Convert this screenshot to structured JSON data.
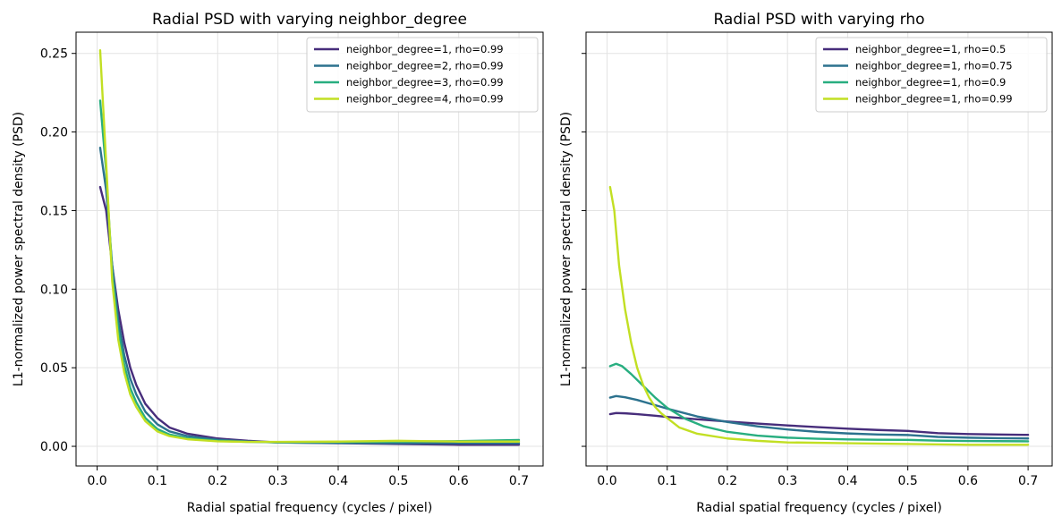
{
  "chart_data": [
    {
      "type": "line",
      "title": "Radial PSD with varying neighbor_degree",
      "xlabel": "Radial spatial frequency (cycles / pixel)",
      "ylabel": "L1-normalized power spectral density (PSD)",
      "xlim": [
        -0.035,
        0.74
      ],
      "ylim": [
        -0.0125,
        0.2635
      ],
      "xticks": [
        0.0,
        0.1,
        0.2,
        0.3,
        0.4,
        0.5,
        0.6,
        0.7
      ],
      "xtick_labels": [
        "0.0",
        "0.1",
        "0.2",
        "0.3",
        "0.4",
        "0.5",
        "0.6",
        "0.7"
      ],
      "yticks": [
        0.0,
        0.05,
        0.1,
        0.15,
        0.2,
        0.25
      ],
      "ytick_labels": [
        "0.00",
        "0.05",
        "0.10",
        "0.15",
        "0.20",
        "0.25"
      ],
      "grid": true,
      "legend_position": "top-right",
      "series": [
        {
          "name": "neighbor_degree=1, rho=0.99",
          "color": "#472d7b",
          "x": [
            0.005,
            0.015,
            0.025,
            0.035,
            0.045,
            0.055,
            0.065,
            0.08,
            0.1,
            0.12,
            0.15,
            0.2,
            0.25,
            0.3,
            0.4,
            0.5,
            0.6,
            0.7
          ],
          "y": [
            0.165,
            0.15,
            0.115,
            0.087,
            0.066,
            0.05,
            0.039,
            0.027,
            0.018,
            0.012,
            0.008,
            0.005,
            0.0035,
            0.0025,
            0.002,
            0.0015,
            0.001,
            0.001
          ]
        },
        {
          "name": "neighbor_degree=2, rho=0.99",
          "color": "#2c728e",
          "x": [
            0.005,
            0.015,
            0.025,
            0.035,
            0.045,
            0.055,
            0.065,
            0.08,
            0.1,
            0.12,
            0.15,
            0.2,
            0.25,
            0.3,
            0.4,
            0.5,
            0.6,
            0.7
          ],
          "y": [
            0.19,
            0.163,
            0.115,
            0.08,
            0.058,
            0.043,
            0.033,
            0.022,
            0.014,
            0.0095,
            0.0065,
            0.0042,
            0.0031,
            0.0024,
            0.0022,
            0.002,
            0.002,
            0.002
          ]
        },
        {
          "name": "neighbor_degree=3, rho=0.99",
          "color": "#28ae80",
          "x": [
            0.005,
            0.015,
            0.025,
            0.035,
            0.045,
            0.055,
            0.065,
            0.08,
            0.1,
            0.12,
            0.15,
            0.2,
            0.25,
            0.3,
            0.4,
            0.5,
            0.6,
            0.7
          ],
          "y": [
            0.22,
            0.175,
            0.11,
            0.074,
            0.052,
            0.037,
            0.028,
            0.018,
            0.011,
            0.0075,
            0.0052,
            0.0035,
            0.0028,
            0.0026,
            0.0027,
            0.003,
            0.0033,
            0.004
          ]
        },
        {
          "name": "neighbor_degree=4, rho=0.99",
          "color": "#c2df23",
          "x": [
            0.005,
            0.015,
            0.025,
            0.035,
            0.045,
            0.055,
            0.065,
            0.08,
            0.1,
            0.12,
            0.15,
            0.2,
            0.25,
            0.3,
            0.4,
            0.5,
            0.6,
            0.7
          ],
          "y": [
            0.252,
            0.18,
            0.105,
            0.068,
            0.047,
            0.033,
            0.025,
            0.016,
            0.0095,
            0.0065,
            0.0045,
            0.0032,
            0.0028,
            0.0028,
            0.003,
            0.0035,
            0.003,
            0.003
          ]
        }
      ]
    },
    {
      "type": "line",
      "title": "Radial PSD with varying rho",
      "xlabel": "Radial spatial frequency (cycles / pixel)",
      "ylabel": "L1-normalized power spectral density (PSD)",
      "xlim": [
        -0.035,
        0.74
      ],
      "ylim": [
        -0.0125,
        0.2635
      ],
      "xticks": [
        0.0,
        0.1,
        0.2,
        0.3,
        0.4,
        0.5,
        0.6,
        0.7
      ],
      "xtick_labels": [
        "0.0",
        "0.1",
        "0.2",
        "0.3",
        "0.4",
        "0.5",
        "0.6",
        "0.7"
      ],
      "yticks": [
        0.0,
        0.05,
        0.1,
        0.15,
        0.2,
        0.25
      ],
      "ytick_labels": [],
      "grid": true,
      "legend_position": "top-right",
      "series": [
        {
          "name": "neighbor_degree=1, rho=0.5",
          "color": "#472d7b",
          "x": [
            0.005,
            0.015,
            0.03,
            0.05,
            0.08,
            0.1,
            0.15,
            0.2,
            0.25,
            0.3,
            0.35,
            0.4,
            0.45,
            0.5,
            0.55,
            0.6,
            0.65,
            0.7
          ],
          "y": [
            0.0205,
            0.0212,
            0.021,
            0.0205,
            0.0195,
            0.0187,
            0.0172,
            0.0158,
            0.0145,
            0.0133,
            0.0122,
            0.0112,
            0.0104,
            0.0098,
            0.0084,
            0.0078,
            0.0075,
            0.0073
          ]
        },
        {
          "name": "neighbor_degree=1, rho=0.75",
          "color": "#2c728e",
          "x": [
            0.005,
            0.015,
            0.03,
            0.05,
            0.08,
            0.1,
            0.15,
            0.2,
            0.25,
            0.3,
            0.35,
            0.4,
            0.45,
            0.5,
            0.55,
            0.6,
            0.65,
            0.7
          ],
          "y": [
            0.031,
            0.032,
            0.0312,
            0.0295,
            0.0262,
            0.024,
            0.019,
            0.0155,
            0.0127,
            0.0107,
            0.0092,
            0.0082,
            0.0075,
            0.0072,
            0.006,
            0.0055,
            0.0052,
            0.005
          ]
        },
        {
          "name": "neighbor_degree=1, rho=0.9",
          "color": "#28ae80",
          "x": [
            0.005,
            0.015,
            0.025,
            0.04,
            0.06,
            0.08,
            0.1,
            0.13,
            0.16,
            0.2,
            0.25,
            0.3,
            0.35,
            0.4,
            0.45,
            0.5,
            0.55,
            0.6,
            0.65,
            0.7
          ],
          "y": [
            0.051,
            0.0525,
            0.051,
            0.046,
            0.0385,
            0.031,
            0.0245,
            0.0175,
            0.0128,
            0.0092,
            0.0068,
            0.0055,
            0.0048,
            0.0044,
            0.0042,
            0.0041,
            0.0036,
            0.0034,
            0.0033,
            0.0032
          ]
        },
        {
          "name": "neighbor_degree=1, rho=0.99",
          "color": "#c2df23",
          "x": [
            0.005,
            0.012,
            0.02,
            0.03,
            0.04,
            0.05,
            0.06,
            0.07,
            0.08,
            0.09,
            0.1,
            0.12,
            0.15,
            0.2,
            0.25,
            0.3,
            0.4,
            0.5,
            0.6,
            0.7
          ],
          "y": [
            0.165,
            0.15,
            0.115,
            0.087,
            0.066,
            0.05,
            0.039,
            0.031,
            0.025,
            0.021,
            0.018,
            0.012,
            0.008,
            0.005,
            0.0035,
            0.0025,
            0.002,
            0.0015,
            0.001,
            0.001
          ]
        }
      ]
    }
  ]
}
